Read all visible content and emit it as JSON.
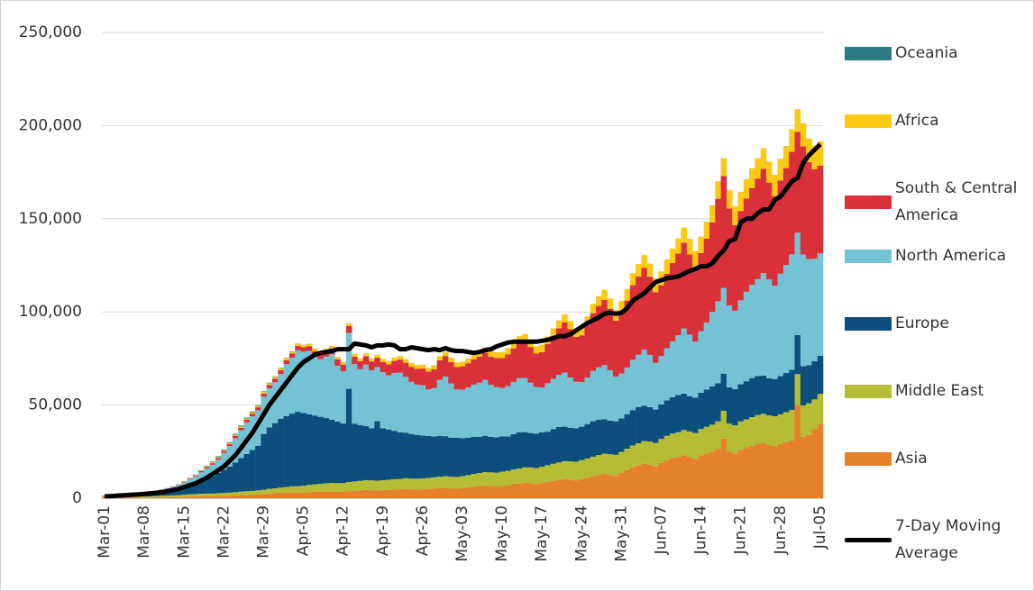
{
  "chart_data": {
    "type": "stacked_bar",
    "categories": [
      "Mar-01",
      null,
      null,
      null,
      null,
      null,
      null,
      "Mar-08",
      null,
      null,
      null,
      null,
      null,
      null,
      "Mar-15",
      null,
      null,
      null,
      null,
      null,
      null,
      "Mar-22",
      null,
      null,
      null,
      null,
      null,
      null,
      "Mar-29",
      null,
      null,
      null,
      null,
      null,
      null,
      "Apr-05",
      null,
      null,
      null,
      null,
      null,
      null,
      "Apr-12",
      null,
      null,
      null,
      null,
      null,
      null,
      "Apr-19",
      null,
      null,
      null,
      null,
      null,
      null,
      "Apr-26",
      null,
      null,
      null,
      null,
      null,
      null,
      "May-03",
      null,
      null,
      null,
      null,
      null,
      null,
      "May-10",
      null,
      null,
      null,
      null,
      null,
      null,
      "May-17",
      null,
      null,
      null,
      null,
      null,
      null,
      "May-24",
      null,
      null,
      null,
      null,
      null,
      null,
      "May-31",
      null,
      null,
      null,
      null,
      null,
      null,
      "Jun-07",
      null,
      null,
      null,
      null,
      null,
      null,
      "Jun-14",
      null,
      null,
      null,
      null,
      null,
      null,
      "Jun-21",
      null,
      null,
      null,
      null,
      null,
      null,
      "Jun-28",
      null,
      null,
      null,
      null,
      null,
      null,
      "Jul-05"
    ],
    "series": [
      {
        "name": "Asia",
        "color": "#e5812b",
        "values": [
          600,
          500,
          600,
          500,
          500,
          400,
          400,
          300,
          300,
          300,
          400,
          400,
          500,
          600,
          800,
          900,
          1000,
          1100,
          1200,
          1100,
          1300,
          1300,
          1400,
          1500,
          1700,
          1800,
          1900,
          2100,
          2300,
          2600,
          2700,
          2900,
          3000,
          3200,
          3000,
          3100,
          3300,
          3400,
          3500,
          3600,
          3700,
          3500,
          3400,
          3800,
          4000,
          4200,
          4500,
          4300,
          4100,
          4200,
          4400,
          4600,
          4800,
          5000,
          4800,
          4700,
          4800,
          5000,
          5200,
          5400,
          5600,
          5300,
          5100,
          5400,
          5800,
          6200,
          6500,
          6800,
          6600,
          6300,
          6700,
          7000,
          7500,
          7800,
          8200,
          8000,
          7600,
          8100,
          8700,
          9300,
          9800,
          10300,
          10000,
          9600,
          10300,
          11000,
          11800,
          12500,
          13000,
          12500,
          12000,
          13500,
          15000,
          16500,
          17500,
          18500,
          18000,
          17000,
          19000,
          20500,
          21500,
          22000,
          23000,
          22000,
          21000,
          23000,
          24000,
          25000,
          26500,
          32000,
          25000,
          24000,
          26000,
          27000,
          28000,
          29000,
          29500,
          28500,
          28000,
          29000,
          30000,
          31000,
          50000,
          33000,
          34000,
          37000,
          40000
        ]
      },
      {
        "name": "Middle East",
        "color": "#b5bd35",
        "values": [
          400,
          500,
          600,
          500,
          500,
          500,
          600,
          600,
          700,
          800,
          900,
          900,
          1000,
          1000,
          1100,
          1200,
          1200,
          1300,
          1300,
          1400,
          1400,
          1500,
          1600,
          1700,
          1800,
          1900,
          2000,
          2100,
          2200,
          2400,
          2600,
          2800,
          3000,
          3200,
          3400,
          3600,
          3800,
          4000,
          4200,
          4400,
          4500,
          4600,
          4700,
          4900,
          5000,
          5100,
          5200,
          5300,
          5300,
          5400,
          5500,
          5600,
          5600,
          5700,
          5700,
          5800,
          5800,
          5900,
          6000,
          6100,
          6200,
          6200,
          6300,
          6400,
          6600,
          6800,
          7000,
          7200,
          7300,
          7400,
          7500,
          7700,
          7900,
          8100,
          8300,
          8500,
          8600,
          8800,
          9000,
          9200,
          9400,
          9600,
          9800,
          10000,
          10100,
          10300,
          10500,
          10700,
          10900,
          11100,
          11300,
          11400,
          11600,
          11800,
          12000,
          12200,
          12400,
          12600,
          12800,
          13000,
          13200,
          13400,
          13600,
          13800,
          14000,
          14100,
          14300,
          14500,
          14700,
          14900,
          15000,
          15100,
          15200,
          15300,
          15500,
          15600,
          15800,
          15900,
          16000,
          16000,
          16200,
          16400,
          16600,
          16800,
          16900,
          16000,
          16000
        ]
      },
      {
        "name": "Europe",
        "color": "#0d4f7c",
        "values": [
          300,
          500,
          700,
          900,
          1000,
          1100,
          1300,
          1500,
          1700,
          2000,
          2200,
          2400,
          2600,
          3000,
          3500,
          4500,
          5500,
          6500,
          8000,
          9500,
          11000,
          12500,
          14000,
          16000,
          18000,
          20000,
          22000,
          24000,
          30000,
          33000,
          35000,
          37000,
          38000,
          39000,
          40000,
          39000,
          38000,
          37000,
          36000,
          35000,
          34000,
          33000,
          32000,
          50000,
          31000,
          30000,
          29000,
          28000,
          32000,
          28000,
          27000,
          26000,
          25000,
          24500,
          24000,
          23500,
          23000,
          22500,
          22000,
          22000,
          21500,
          21000,
          21000,
          20500,
          20000,
          20000,
          19500,
          19500,
          19000,
          19000,
          19000,
          18500,
          19000,
          19500,
          19000,
          18500,
          18500,
          18500,
          18000,
          18500,
          19000,
          18500,
          18000,
          18000,
          18000,
          18500,
          19000,
          19000,
          18500,
          18000,
          18000,
          18000,
          18500,
          19000,
          19500,
          19000,
          18500,
          18000,
          18500,
          19000,
          19500,
          20000,
          19500,
          19000,
          19000,
          19500,
          20000,
          20500,
          20500,
          20000,
          19500,
          19500,
          20000,
          20500,
          21000,
          21000,
          20500,
          20000,
          20000,
          20500,
          21000,
          21500,
          21000,
          21000,
          20500,
          20500,
          20500
        ]
      },
      {
        "name": "North America",
        "color": "#74c3d5",
        "values": [
          100,
          100,
          200,
          200,
          300,
          300,
          400,
          500,
          600,
          800,
          1000,
          1500,
          2000,
          2500,
          3000,
          3500,
          4000,
          5000,
          5500,
          6000,
          7000,
          9000,
          11000,
          13000,
          15000,
          17000,
          18000,
          19000,
          20000,
          21000,
          22000,
          24000,
          28000,
          30000,
          33000,
          33000,
          34000,
          32000,
          31000,
          33000,
          35000,
          30000,
          28000,
          30000,
          32000,
          30000,
          33000,
          31000,
          29000,
          30000,
          29000,
          31000,
          32000,
          30000,
          28000,
          27000,
          27000,
          25000,
          26000,
          30000,
          32000,
          29000,
          26000,
          26000,
          27000,
          28000,
          29000,
          30000,
          28000,
          27000,
          26000,
          27000,
          28000,
          29000,
          29000,
          27000,
          25000,
          24000,
          26000,
          27000,
          28000,
          29000,
          27000,
          25000,
          24000,
          25000,
          27000,
          28000,
          29000,
          27000,
          24000,
          24000,
          25000,
          27000,
          28000,
          30000,
          28000,
          25000,
          26000,
          28000,
          30000,
          32000,
          35000,
          33000,
          30000,
          33000,
          36000,
          40000,
          44000,
          46000,
          44000,
          42000,
          45000,
          48000,
          50000,
          52000,
          55000,
          53000,
          50000,
          55000,
          58000,
          62000,
          55000,
          60000,
          57000,
          55000,
          55000
        ]
      },
      {
        "name": "South & Central America",
        "color": "#d9303a",
        "values": [
          10,
          10,
          10,
          20,
          20,
          30,
          40,
          50,
          60,
          80,
          100,
          150,
          200,
          250,
          300,
          400,
          500,
          600,
          700,
          800,
          900,
          1000,
          1100,
          1200,
          1300,
          1400,
          1500,
          1600,
          1700,
          1800,
          1900,
          2000,
          2100,
          2200,
          2300,
          2400,
          2500,
          2600,
          2800,
          3000,
          3200,
          3400,
          3600,
          3800,
          4000,
          4200,
          4500,
          4800,
          5000,
          5500,
          6000,
          6500,
          7000,
          7500,
          8000,
          8500,
          9000,
          9500,
          10000,
          10500,
          11000,
          11500,
          12000,
          12500,
          13000,
          13500,
          14000,
          14500,
          15000,
          15500,
          16000,
          17000,
          18000,
          19000,
          20000,
          19000,
          18000,
          19000,
          21000,
          23000,
          25000,
          27000,
          26000,
          24000,
          25000,
          28000,
          31000,
          33000,
          35000,
          33000,
          30000,
          33000,
          36000,
          40000,
          42000,
          44000,
          42000,
          38000,
          38000,
          40000,
          42000,
          44000,
          46000,
          43000,
          40000,
          42000,
          45000,
          48000,
          55000,
          60000,
          52000,
          46000,
          48000,
          50000,
          52000,
          54000,
          56000,
          52000,
          48000,
          50000,
          52000,
          55000,
          54000,
          58000,
          52000,
          48000,
          47000
        ]
      },
      {
        "name": "Africa",
        "color": "#fcc915",
        "values": [
          0,
          0,
          10,
          10,
          20,
          20,
          30,
          40,
          50,
          60,
          80,
          100,
          120,
          150,
          200,
          250,
          300,
          350,
          400,
          450,
          500,
          500,
          550,
          600,
          650,
          700,
          750,
          800,
          850,
          900,
          950,
          1000,
          1000,
          1050,
          1100,
          1100,
          1150,
          1200,
          1200,
          1250,
          1300,
          1300,
          1350,
          1400,
          1450,
          1500,
          1500,
          1550,
          1600,
          1650,
          1700,
          1750,
          1800,
          1850,
          1900,
          1950,
          2000,
          2050,
          2100,
          2150,
          2200,
          2300,
          2400,
          2500,
          2600,
          2700,
          2800,
          2900,
          3000,
          3100,
          3200,
          3300,
          3400,
          3500,
          3600,
          3700,
          3800,
          3900,
          4000,
          4100,
          4200,
          4300,
          4400,
          4500,
          4600,
          4800,
          5000,
          5200,
          5400,
          5600,
          5800,
          6000,
          6200,
          6400,
          6600,
          6800,
          7000,
          7200,
          7400,
          7600,
          7800,
          8000,
          8200,
          8400,
          8600,
          8800,
          9000,
          9200,
          9400,
          9600,
          9800,
          10000,
          10200,
          10400,
          10600,
          10800,
          11000,
          11200,
          11400,
          11600,
          11800,
          12000,
          12200,
          12400,
          12600,
          12800,
          13000
        ]
      },
      {
        "name": "Oceania",
        "color": "#2b7b84",
        "values": [
          0,
          0,
          0,
          0,
          0,
          10,
          10,
          20,
          20,
          30,
          40,
          50,
          60,
          80,
          100,
          150,
          200,
          250,
          300,
          350,
          400,
          400,
          450,
          500,
          500,
          450,
          400,
          350,
          300,
          300,
          250,
          250,
          200,
          200,
          150,
          100,
          90,
          80,
          70,
          60,
          50,
          40,
          30,
          30,
          30,
          30,
          30,
          30,
          30,
          30,
          30,
          30,
          30,
          30,
          30,
          30,
          30,
          30,
          30,
          30,
          30,
          30,
          30,
          30,
          30,
          30,
          30,
          30,
          30,
          30,
          30,
          30,
          30,
          30,
          30,
          30,
          30,
          30,
          30,
          30,
          30,
          30,
          30,
          30,
          30,
          30,
          30,
          30,
          30,
          30,
          30,
          30,
          30,
          30,
          30,
          30,
          30,
          30,
          30,
          30,
          30,
          30,
          30,
          30,
          30,
          30,
          30,
          30,
          30,
          30,
          30,
          30,
          30,
          30,
          30,
          30,
          30,
          30,
          30,
          30,
          30,
          30,
          30,
          30,
          30,
          30,
          30
        ]
      },
      {
        "name": "7-Day Moving Average",
        "color": "#000000",
        "type": "line",
        "values": [
          1000,
          1100,
          1300,
          1500,
          1700,
          1900,
          2100,
          2300,
          2600,
          2900,
          3200,
          3700,
          4300,
          5000,
          6000,
          7000,
          8000,
          9500,
          11000,
          13000,
          15000,
          17000,
          20000,
          23000,
          27000,
          31000,
          35000,
          40000,
          45000,
          50000,
          54000,
          58000,
          62000,
          66000,
          70000,
          73000,
          75000,
          77000,
          78000,
          78500,
          79000,
          80000,
          80000,
          80000,
          83000,
          82500,
          82000,
          81000,
          82000,
          82000,
          82500,
          82000,
          80000,
          80000,
          81000,
          80500,
          80000,
          79500,
          80000,
          79500,
          80500,
          79500,
          79000,
          79000,
          78500,
          78000,
          78500,
          79500,
          80000,
          81500,
          82500,
          83500,
          84000,
          84000,
          84000,
          84000,
          84000,
          84500,
          85000,
          86000,
          87000,
          87000,
          88000,
          90000,
          92000,
          94000,
          95500,
          97000,
          99000,
          99500,
          99000,
          99500,
          102000,
          106000,
          108000,
          110000,
          113000,
          116000,
          117000,
          118000,
          118500,
          119000,
          120500,
          122000,
          123000,
          124500,
          124500,
          126000,
          130000,
          133000,
          138000,
          139000,
          148000,
          150000,
          150000,
          153000,
          155000,
          155000,
          160000,
          162000,
          166000,
          170000,
          172000,
          180000,
          184000,
          187000,
          190000
        ]
      }
    ],
    "ylim": [
      0,
      250000
    ],
    "yticks": [
      0,
      {
        "value": 50000,
        "label": "50,000"
      },
      {
        "value": 100000,
        "label": "100,000"
      },
      {
        "value": 150000,
        "label": "150,000"
      },
      {
        "value": 200000,
        "label": "200,000"
      },
      {
        "value": 250000,
        "label": "250,000"
      }
    ],
    "grid": true
  }
}
